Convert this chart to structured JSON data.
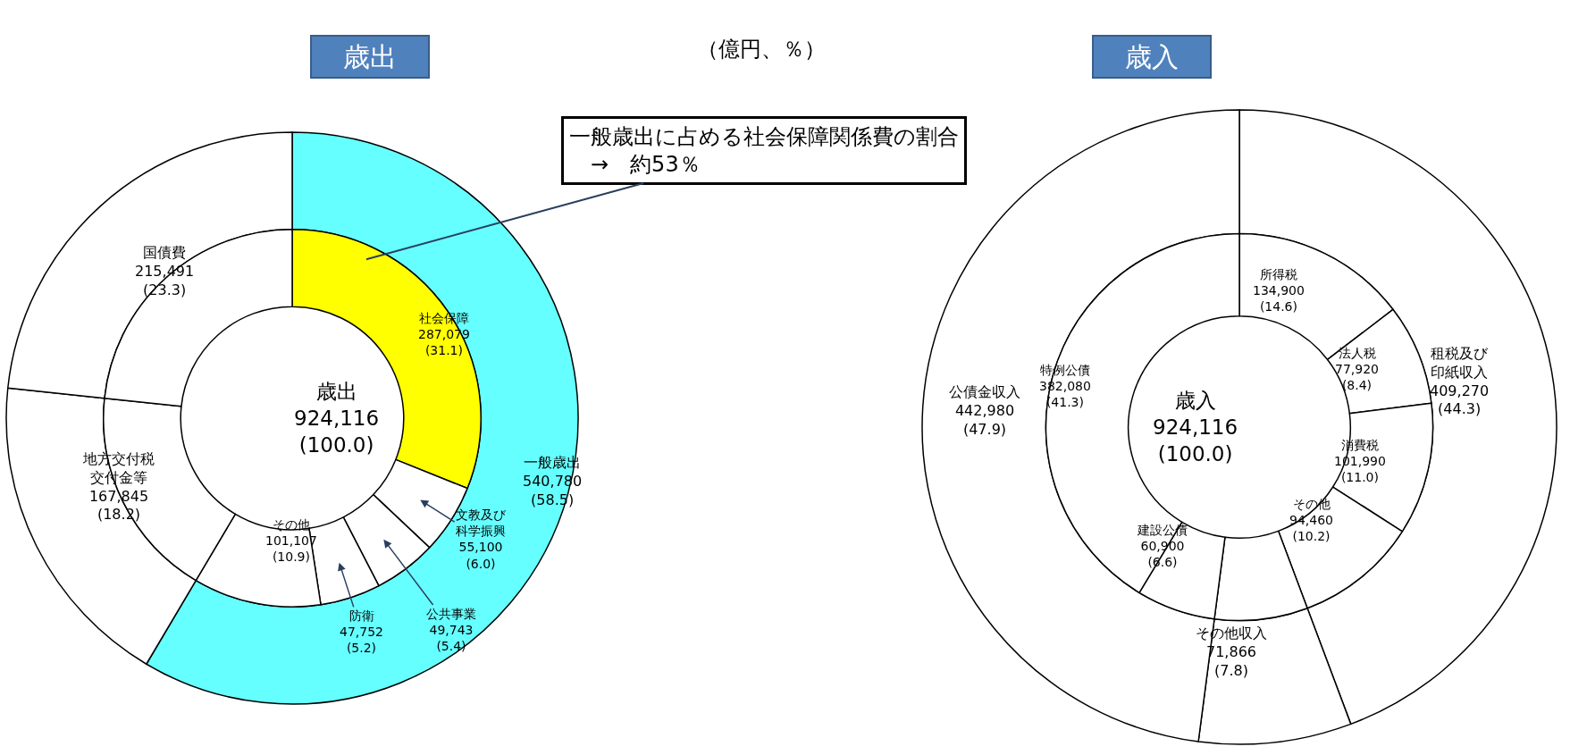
{
  "chart_data": [
    {
      "type": "donut",
      "title": "歳出",
      "categories": [
        "一般歳出",
        "地方交付税交付金等",
        "国債費"
      ],
      "values": [
        540780,
        167845,
        215491
      ],
      "colors": [
        "#66ffff",
        "#ffffff",
        "#ffffff"
      ],
      "value_labels": [
        "540,780\n(58.5)",
        "167,845\n(18.2)",
        "215,491\n(23.3)"
      ],
      "annotations": [
        "（億円、％）",
        "一般歳出に占める社会保障関係費の割合\n　→　約53％"
      ]
    },
    {
      "type": "donut",
      "categories": [
        "社会保障",
        "文教及び科学振興",
        "公共事業",
        "防衛",
        "その他",
        null,
        null
      ],
      "values": [
        287079,
        55100,
        49743,
        47752,
        101107,
        167845,
        215491
      ],
      "colors": [
        "#ffff00",
        "#ffffff",
        "#ffffff",
        "#ffffff",
        "#ffffff",
        "#ffffff",
        "#ffffff"
      ],
      "value_labels": [
        "287,079\n(31.1)",
        "55,100\n(6.0)",
        "49,743\n(5.4)",
        "47,752\n(5.2)",
        "101,107\n(10.9)",
        null,
        null
      ],
      "annotations": [
        "歳出\n924,116\n(100.0)"
      ]
    },
    {
      "type": "donut",
      "title": "歳入",
      "categories": [
        "租税及び印紙収入",
        "その他収入",
        "公債金収入"
      ],
      "values": [
        409270,
        71866,
        442980
      ],
      "colors": [
        "#ffffff",
        "#ffffff",
        "#ffffff"
      ],
      "value_labels": [
        "409,270\n(44.3)",
        "71,866\n(7.8)",
        "442,980\n(47.9)"
      ]
    },
    {
      "type": "donut",
      "categories": [
        "所得税",
        "法人税",
        "消費税",
        "その他",
        null,
        "建設公債",
        "特例公債"
      ],
      "values": [
        134900,
        77920,
        101990,
        94460,
        71866,
        60900,
        382080
      ],
      "colors": [
        "#ffffff",
        "#ffffff",
        "#ffffff",
        "#ffffff",
        "#ffffff",
        "#ffffff",
        "#ffffff"
      ],
      "value_labels": [
        "134,900\n(14.6)",
        "77,920\n(8.4)",
        "101,990\n(11.0)",
        "94,460\n(10.2)",
        null,
        "60,900\n(6.6)",
        "382,080\n(41.3)"
      ],
      "annotations": [
        "歳入\n924,116\n(100.0)"
      ]
    }
  ]
}
